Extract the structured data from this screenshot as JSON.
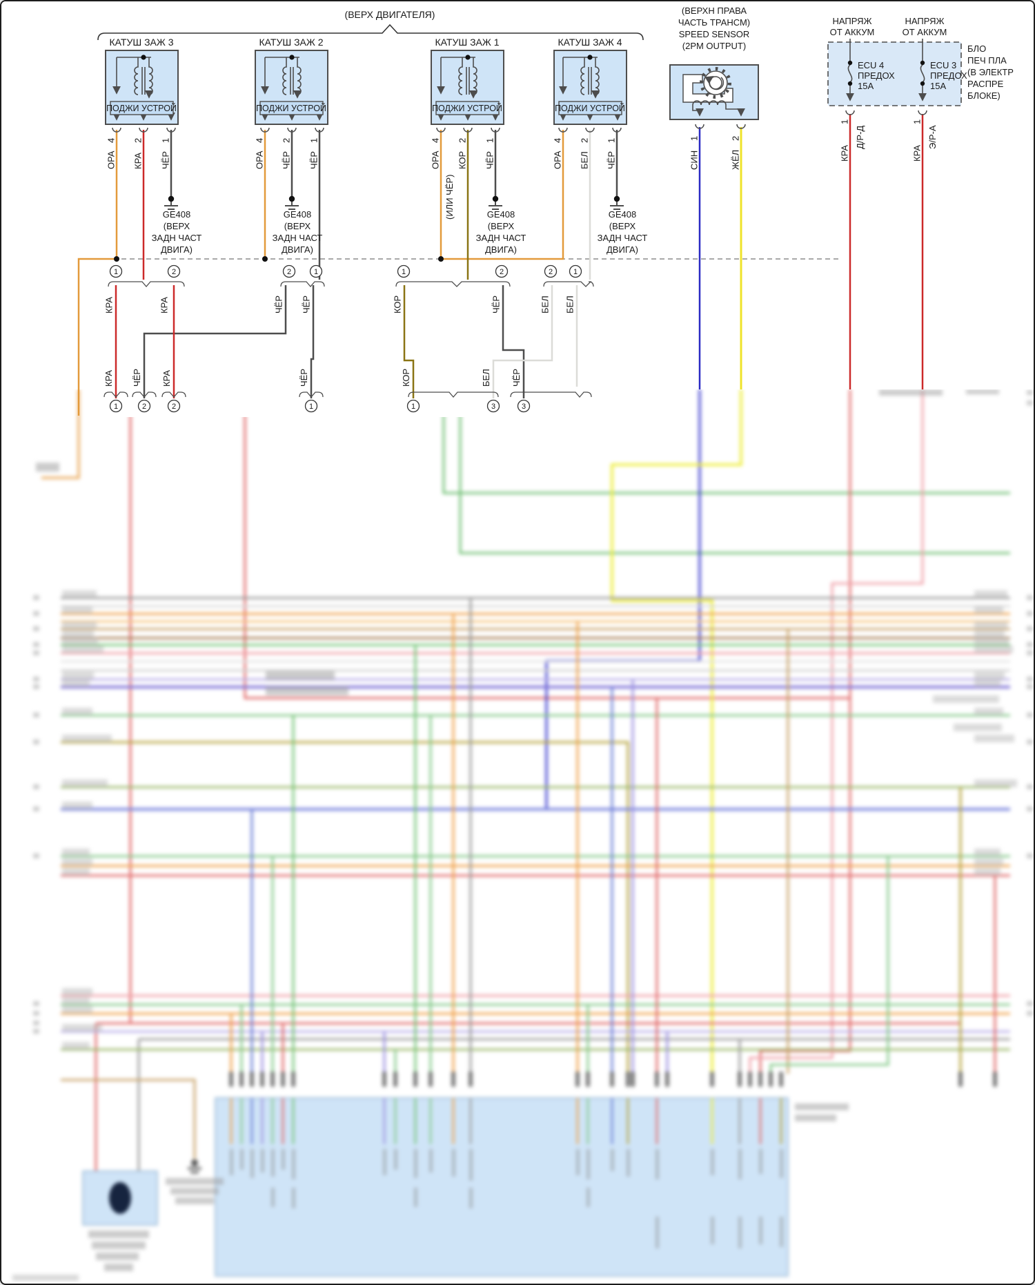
{
  "page": {
    "bracket_note": "(ВЕРХ ДВИГАТЕЛЯ)"
  },
  "coils": {
    "igniter_label": "ПОДЖИ УСТРОЙ",
    "items": [
      {
        "name": "КАТУШ ЗАЖ 3",
        "pins": [
          {
            "num": "4",
            "color": "ОРА"
          },
          {
            "num": "2",
            "color": "КРА"
          },
          {
            "num": "1",
            "color": "ЧЁР"
          }
        ]
      },
      {
        "name": "КАТУШ ЗАЖ 2",
        "pins": [
          {
            "num": "4",
            "color": "ОРА"
          },
          {
            "num": "2",
            "color": "ЧЁР"
          },
          {
            "num": "1",
            "color": "ЧЁР"
          }
        ]
      },
      {
        "name": "КАТУШ ЗАЖ 1",
        "alt_wire_note": "(ИЛИ ЧЁР)",
        "pins": [
          {
            "num": "4",
            "color": "ОРА"
          },
          {
            "num": "2",
            "color": "КОР"
          },
          {
            "num": "1",
            "color": "ЧЁР"
          }
        ]
      },
      {
        "name": "КАТУШ ЗАЖ 4",
        "pins": [
          {
            "num": "4",
            "color": "ОРА"
          },
          {
            "num": "2",
            "color": "БЕЛ"
          },
          {
            "num": "1",
            "color": "ЧЁР"
          }
        ]
      }
    ]
  },
  "ground": {
    "lines": [
      "GE408",
      "(ВЕРХ",
      "ЗАДН ЧАСТ",
      "ДВИГА)"
    ]
  },
  "speed_sensor": {
    "lines": [
      "(ВЕРХН ПРАВА",
      "ЧАСТЬ ТРАНСМ)",
      "SPEED SENSOR",
      "(2PM OUTPUT)"
    ],
    "pins": [
      {
        "color": "СИН",
        "num": "1"
      },
      {
        "color": "ЖЁЛ",
        "num": "2"
      }
    ]
  },
  "fuse_box": {
    "feed_lines": [
      "НАПРЯЖ",
      "ОТ АККУМ"
    ],
    "note_lines": [
      "БЛО",
      "ПЕЧ ПЛА",
      "(В ЭЛЕКТР",
      "РАСПРЕ",
      "БЛОКЕ)"
    ],
    "fuses": [
      {
        "lines": [
          "ECU 4",
          "ПРЕДОХ",
          "15А"
        ],
        "pin": "1",
        "circuit": "Д/Р-Д",
        "wire_color": "КРА"
      },
      {
        "lines": [
          "ECU 3",
          "ПРЕДОХ",
          "15А"
        ],
        "pin": "1",
        "circuit": "Э/Р-А",
        "wire_color": "КРА"
      }
    ]
  },
  "connector_row1": {
    "labels": [
      "КРА",
      "КРА",
      "ЧЁР",
      "ЧЁР",
      "КОР",
      "ЧЁР",
      "БЕЛ",
      "БЕЛ"
    ],
    "pins": [
      "1",
      "2",
      "2",
      "1",
      "1",
      "2",
      "2",
      "1"
    ]
  },
  "connector_row2": {
    "labels": [
      "КРА",
      "ЧЁР",
      "КРА",
      "ЧЁР",
      "КОР",
      "БЕЛ",
      "ЧЁР"
    ],
    "pins": [
      "1",
      "2",
      "2",
      "1",
      "1",
      "3",
      "3"
    ]
  },
  "wire_colors": {
    "ОРА": "#E39A3B",
    "КРА": "#CC2A2A",
    "ЧЁР": "#4D4D4D",
    "КОР": "#8A7414",
    "БЕЛ": "#DCDCD8",
    "СИН": "#2B2BC4",
    "ЖЁЛ": "#EFE32A"
  },
  "panel_fill": "#CFE4F7"
}
